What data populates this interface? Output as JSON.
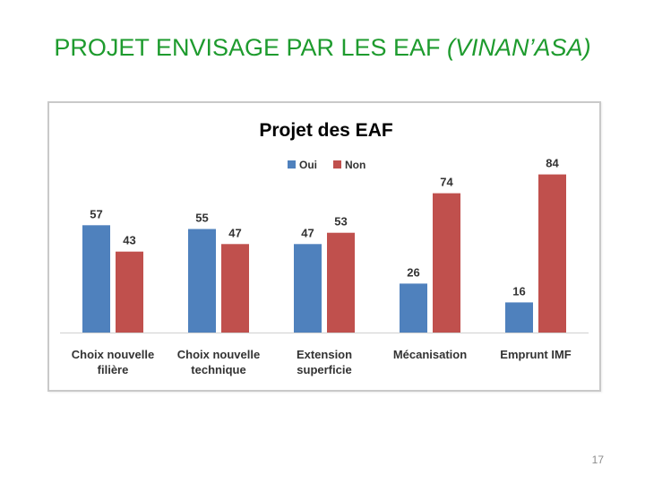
{
  "slide": {
    "title_main": "PROJET ENVISAGE PAR LES EAF ",
    "title_italic": "(VINAN’ASA)",
    "page_number": "17"
  },
  "colors": {
    "title": "#1e9b2e",
    "oui": "#4f81bd",
    "non": "#c0504d"
  },
  "chart_data": {
    "type": "bar",
    "title": "Projet des EAF",
    "categories": [
      [
        "Choix nouvelle",
        "filière"
      ],
      [
        "Choix nouvelle",
        "technique"
      ],
      [
        "Extension",
        "superficie"
      ],
      [
        "Mécanisation"
      ],
      [
        "Emprunt IMF"
      ]
    ],
    "series": [
      {
        "name": "Oui",
        "color": "#4f81bd",
        "values": [
          57,
          55,
          47,
          26,
          16
        ]
      },
      {
        "name": "Non",
        "color": "#c0504d",
        "values": [
          43,
          47,
          53,
          74,
          84
        ]
      }
    ],
    "ylim": [
      0,
      100
    ],
    "legend_position": "top",
    "data_labels": true,
    "grid": false
  }
}
